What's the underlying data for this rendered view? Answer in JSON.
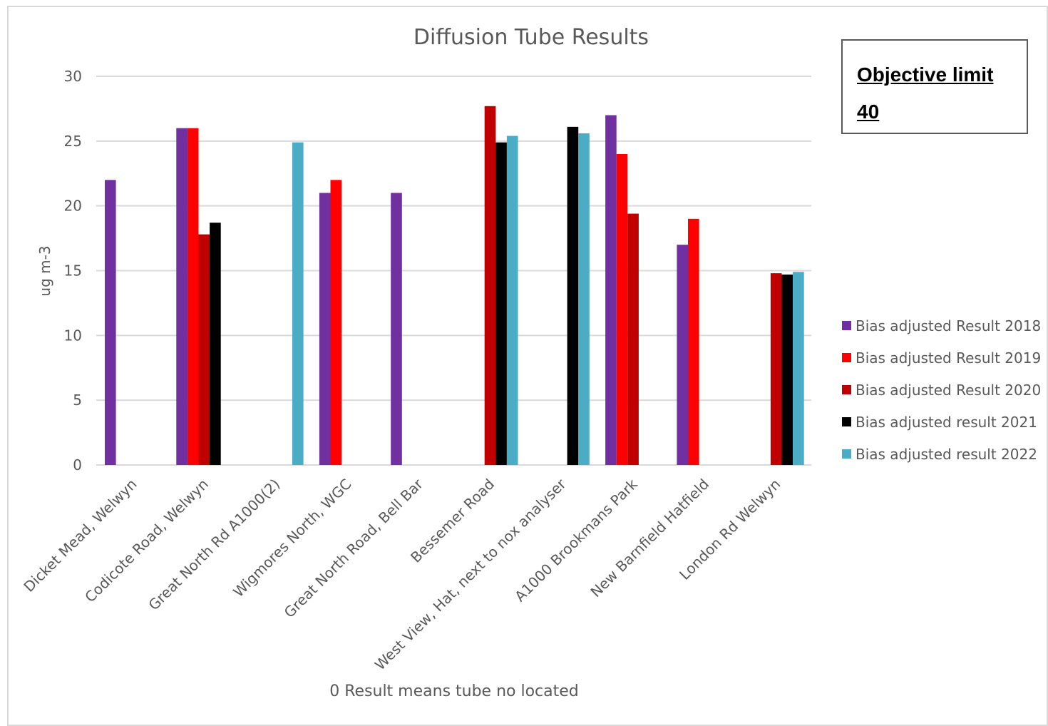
{
  "chart_data": {
    "type": "bar",
    "title": "Diffusion Tube Results",
    "ylabel": "ug m-3",
    "note": "0 Result means tube no located",
    "ylim": [
      0,
      30
    ],
    "yticks": [
      0,
      5,
      10,
      15,
      20,
      25,
      30
    ],
    "grid": true,
    "legend_position": "right",
    "categories": [
      "Dicket Mead, Welwyn",
      "Codicote Road, Welwyn",
      "Great North Rd A1000(2)",
      "Wigmores North, WGC",
      "Great North Road, Bell Bar",
      "Bessemer Road",
      "West View, Hat, next to nox analyser",
      "A1000 Brookmans Park",
      "New Barnfield Hatfield",
      "London Rd Welwyn"
    ],
    "series": [
      {
        "name": "Bias adjusted Result 2018",
        "color": "#7030A0",
        "values": [
          22,
          26,
          0,
          21,
          21,
          0,
          0,
          27,
          17,
          0
        ]
      },
      {
        "name": "Bias adjusted Result 2019",
        "color": "#FF0000",
        "values": [
          0,
          26,
          0,
          22,
          0,
          0,
          0,
          24,
          19,
          0
        ]
      },
      {
        "name": "Bias adjusted Result 2020",
        "color": "#C00000",
        "values": [
          0,
          17.8,
          0,
          0,
          0,
          27.7,
          0,
          19.4,
          0,
          14.8
        ]
      },
      {
        "name": "Bias adjusted result 2021",
        "color": "#000000",
        "values": [
          0,
          18.7,
          0,
          0,
          0,
          24.9,
          26.1,
          0,
          0,
          14.7
        ]
      },
      {
        "name": "Bias adjusted result 2022",
        "color": "#4BACC6",
        "values": [
          0,
          0,
          24.9,
          0,
          0,
          25.4,
          25.6,
          0,
          0,
          14.9
        ]
      }
    ]
  },
  "objective": {
    "line1": "Objective limit",
    "line2": "40"
  }
}
